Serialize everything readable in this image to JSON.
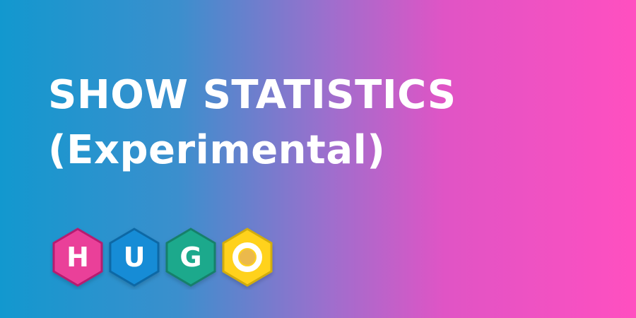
{
  "title": {
    "line1": "SHOW STATISTICS",
    "line2": "(Experimental)"
  },
  "logo": {
    "letters": [
      "H",
      "U",
      "G",
      "O"
    ],
    "colors": {
      "h": "#ea3f99",
      "u": "#138cd6",
      "g": "#1fa98c",
      "o": "#ffd21f",
      "o_inner": "#ebb94b"
    }
  }
}
